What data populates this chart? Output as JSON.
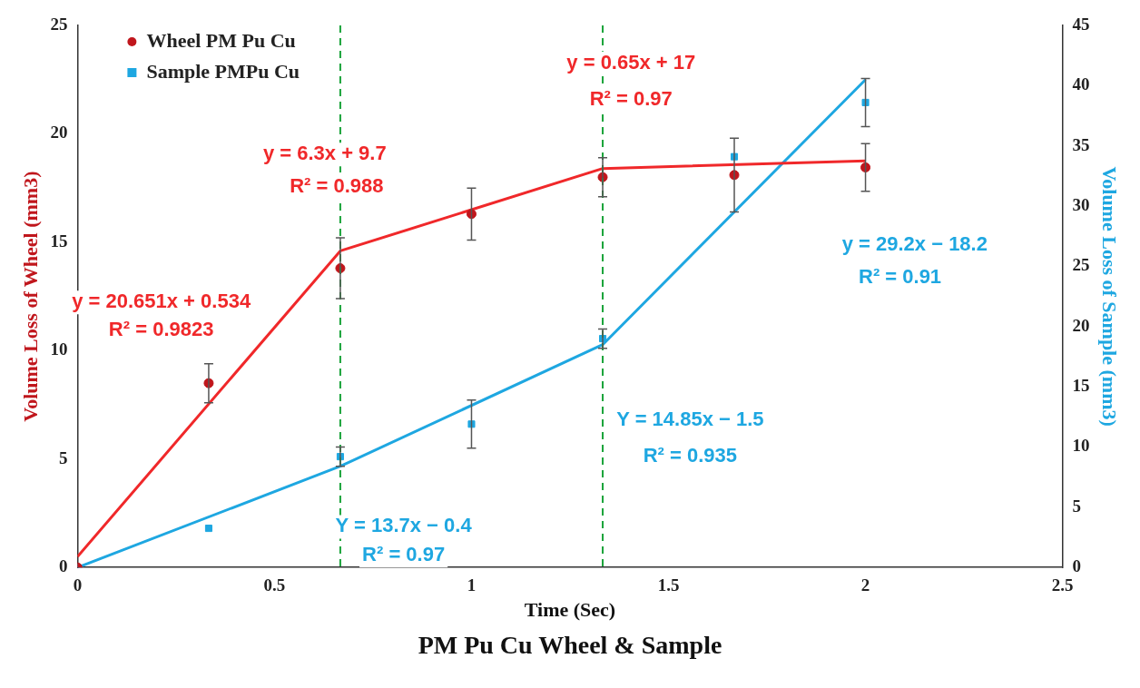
{
  "chart_data": {
    "type": "scatter",
    "title": "PM Pu Cu Wheel & Sample",
    "xlabel": "Time (Sec)",
    "ylabel": "Volume Loss of Wheel (mm3)",
    "y2label": "Volume Loss of Sample (mm3)",
    "xlim": [
      0,
      2.5
    ],
    "xticks": [
      0,
      0.5,
      1,
      1.5,
      2,
      2.5
    ],
    "ylim": [
      0,
      25
    ],
    "yticks": [
      0,
      5,
      10,
      15,
      20,
      25
    ],
    "y2lim": [
      0,
      45
    ],
    "y2ticks": [
      0,
      5,
      10,
      15,
      20,
      25,
      30,
      35,
      40,
      45
    ],
    "grid": false,
    "legend": "top left",
    "series": [
      {
        "name": "Wheel PM Pu Cu",
        "marker": "circle",
        "color": "#c0161c",
        "axis": "y",
        "x": [
          0,
          0.333,
          0.667,
          1,
          1.333,
          1.667,
          2
        ],
        "values": [
          0,
          8.5,
          13.8,
          16.3,
          18.0,
          18.1,
          18.45
        ],
        "errors": [
          null,
          0.9,
          1.4,
          1.2,
          0.9,
          1.7,
          1.1
        ]
      },
      {
        "name": "Sample PMPu Cu",
        "marker": "square",
        "color": "#1ea7e1",
        "axis": "y2",
        "x": [
          0,
          0.333,
          0.667,
          1,
          1.333,
          1.667,
          2
        ],
        "values": [
          0,
          3.25,
          9.2,
          11.9,
          19.0,
          34.1,
          38.6
        ],
        "errors": [
          null,
          null,
          0.8,
          2,
          0.8,
          null,
          2
        ]
      },
      {
        "type": "line",
        "marker": "none",
        "color": "#f0282a",
        "axis": "y",
        "x": [
          0,
          0.667,
          1.333,
          2
        ],
        "values": [
          0.5,
          14.6,
          18.4,
          18.75
        ]
      },
      {
        "type": "line",
        "marker": "none",
        "color": "#1ea7e1",
        "axis": "y2",
        "x": [
          0,
          0.667,
          1.333,
          2
        ],
        "values": [
          0,
          8.4,
          18.5,
          40.5
        ]
      }
    ],
    "ref_lines": [
      {
        "axis": "x",
        "value": 0.667,
        "color": "#1aa33a",
        "line_style": "dashed"
      },
      {
        "axis": "x",
        "value": 1.333,
        "color": "#1aa33a",
        "line_style": "dashed"
      }
    ],
    "annotations": [
      "y = 20.651x + 0.534",
      "R² = 0.9823",
      "y = 6.3x + 9.7",
      "R² = 0.988",
      "y = 0.65x + 17",
      "R² = 0.97",
      "y = 29.2x − 18.2",
      "R² = 0.91",
      "Y = 14.85x − 1.5",
      "R² = 0.935",
      "Y = 13.7x − 0.4",
      "R² = 0.97"
    ]
  }
}
